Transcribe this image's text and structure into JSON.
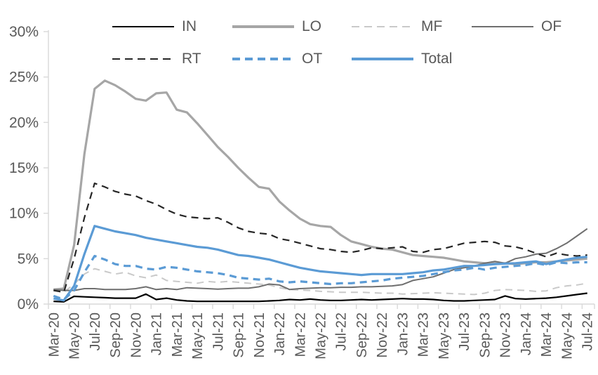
{
  "chart_data": {
    "type": "line",
    "title": "",
    "xlabel": "",
    "ylabel": "",
    "ylim": [
      0,
      30
    ],
    "grid": false,
    "y_tick_labels": [
      "0%",
      "5%",
      "10%",
      "15%",
      "20%",
      "25%",
      "30%"
    ],
    "x_tick_label_step": 2,
    "axis_color": "#d9d9d9",
    "label_color": "#595959",
    "x": [
      "Mar-20",
      "Apr-20",
      "May-20",
      "Jun-20",
      "Jul-20",
      "Aug-20",
      "Sep-20",
      "Oct-20",
      "Nov-20",
      "Dec-20",
      "Jan-21",
      "Feb-21",
      "Mar-21",
      "Apr-21",
      "May-21",
      "Jun-21",
      "Jul-21",
      "Aug-21",
      "Sep-21",
      "Oct-21",
      "Nov-21",
      "Dec-21",
      "Jan-22",
      "Feb-22",
      "Mar-22",
      "Apr-22",
      "May-22",
      "Jun-22",
      "Jul-22",
      "Aug-22",
      "Sep-22",
      "Oct-22",
      "Nov-22",
      "Dec-22",
      "Jan-23",
      "Feb-23",
      "Mar-23",
      "Apr-23",
      "May-23",
      "Jun-23",
      "Jul-23",
      "Aug-23",
      "Sep-23",
      "Oct-23",
      "Nov-23",
      "Dec-23",
      "Jan-24",
      "Feb-24",
      "Mar-24",
      "Apr-24",
      "May-24",
      "Jun-24",
      "Jul-24"
    ],
    "series": [
      {
        "name": "IN",
        "color": "#000000",
        "dash": "solid",
        "width": 2.2,
        "values": [
          0.3,
          0.25,
          0.85,
          0.8,
          0.75,
          0.7,
          0.65,
          0.65,
          0.65,
          1.1,
          0.5,
          0.65,
          0.45,
          0.35,
          0.3,
          0.3,
          0.3,
          0.3,
          0.3,
          0.3,
          0.3,
          0.35,
          0.4,
          0.5,
          0.45,
          0.55,
          0.45,
          0.4,
          0.4,
          0.45,
          0.5,
          0.45,
          0.5,
          0.55,
          0.6,
          0.55,
          0.55,
          0.5,
          0.4,
          0.35,
          0.35,
          0.4,
          0.45,
          0.5,
          0.9,
          0.6,
          0.55,
          0.6,
          0.65,
          0.75,
          0.9,
          1.05,
          1.2
        ]
      },
      {
        "name": "LO",
        "color": "#a6a6a6",
        "dash": "solid",
        "width": 3.2,
        "values": [
          1.6,
          1.7,
          6.5,
          16.5,
          23.7,
          24.6,
          24.1,
          23.4,
          22.6,
          22.4,
          23.2,
          23.3,
          21.4,
          21.1,
          19.9,
          18.6,
          17.3,
          16.2,
          15.0,
          13.9,
          12.9,
          12.7,
          11.3,
          10.3,
          9.4,
          8.8,
          8.6,
          8.5,
          7.6,
          6.9,
          6.6,
          6.3,
          6.1,
          6.0,
          5.7,
          5.4,
          5.3,
          5.2,
          5.1,
          4.9,
          4.7,
          4.6,
          4.5,
          4.5,
          4.5,
          4.4,
          4.5,
          4.6,
          4.6,
          4.7,
          4.8,
          4.9,
          5.0
        ]
      },
      {
        "name": "MF",
        "color": "#c9c9c9",
        "dash": "dashed",
        "width": 2.0,
        "values": [
          1.5,
          1.3,
          2.2,
          3.3,
          3.9,
          3.6,
          3.3,
          3.5,
          3.1,
          2.9,
          3.2,
          2.6,
          2.5,
          2.4,
          2.3,
          2.5,
          2.4,
          2.5,
          2.4,
          2.3,
          2.2,
          2.1,
          1.8,
          1.6,
          1.55,
          1.5,
          1.4,
          1.35,
          1.3,
          1.3,
          1.3,
          1.25,
          1.2,
          1.2,
          1.1,
          1.15,
          1.2,
          1.25,
          1.2,
          1.15,
          1.1,
          1.05,
          1.2,
          1.5,
          1.6,
          1.55,
          1.5,
          1.4,
          1.45,
          1.8,
          2.0,
          2.1,
          2.3
        ]
      },
      {
        "name": "OF",
        "color": "#6f6f6f",
        "dash": "solid",
        "width": 2.0,
        "values": [
          1.6,
          1.5,
          1.5,
          1.7,
          1.7,
          1.6,
          1.6,
          1.6,
          1.7,
          1.9,
          1.6,
          1.7,
          1.6,
          1.8,
          1.75,
          1.7,
          1.65,
          1.7,
          1.75,
          1.75,
          1.9,
          2.2,
          2.1,
          1.6,
          1.7,
          1.75,
          1.8,
          1.8,
          1.85,
          1.85,
          1.9,
          1.9,
          1.95,
          2.0,
          2.15,
          2.6,
          2.8,
          3.0,
          3.4,
          3.8,
          4.0,
          4.2,
          4.5,
          4.7,
          4.5,
          5.0,
          5.2,
          5.5,
          5.6,
          6.1,
          6.7,
          7.5,
          8.3
        ]
      },
      {
        "name": "RT",
        "color": "#262626",
        "dash": "dashed",
        "width": 2.2,
        "values": [
          1.5,
          1.3,
          5.0,
          9.5,
          13.3,
          12.9,
          12.4,
          12.1,
          11.9,
          11.4,
          11.0,
          10.4,
          9.9,
          9.6,
          9.5,
          9.4,
          9.5,
          9.0,
          8.4,
          8.0,
          7.8,
          7.7,
          7.2,
          7.0,
          6.7,
          6.4,
          6.1,
          6.0,
          5.8,
          5.7,
          5.9,
          6.2,
          6.1,
          6.2,
          6.3,
          5.8,
          5.7,
          6.0,
          6.1,
          6.4,
          6.7,
          6.8,
          6.9,
          6.8,
          6.4,
          6.3,
          6.0,
          5.6,
          5.2,
          5.6,
          5.4,
          5.3,
          5.4
        ]
      },
      {
        "name": "OT",
        "color": "#5b9bd5",
        "dash": "dashed",
        "width": 3.2,
        "values": [
          0.9,
          0.5,
          1.5,
          3.5,
          5.3,
          4.9,
          4.4,
          4.2,
          4.2,
          3.9,
          3.8,
          4.1,
          4.0,
          3.8,
          3.6,
          3.5,
          3.4,
          3.2,
          2.9,
          2.8,
          2.7,
          2.8,
          2.5,
          2.4,
          2.5,
          2.4,
          2.3,
          2.2,
          2.3,
          2.3,
          2.4,
          2.5,
          2.6,
          2.8,
          2.9,
          3.0,
          3.1,
          3.3,
          3.5,
          3.7,
          3.8,
          4.0,
          3.8,
          4.0,
          4.1,
          4.2,
          4.3,
          4.5,
          4.3,
          4.6,
          4.5,
          4.6,
          4.6
        ]
      },
      {
        "name": "Total",
        "color": "#5b9bd5",
        "dash": "solid",
        "width": 3.2,
        "values": [
          0.6,
          0.4,
          2.0,
          5.5,
          8.6,
          8.3,
          8.0,
          7.8,
          7.6,
          7.3,
          7.1,
          6.9,
          6.7,
          6.5,
          6.3,
          6.2,
          6.0,
          5.7,
          5.4,
          5.3,
          5.1,
          4.9,
          4.6,
          4.3,
          4.0,
          3.8,
          3.6,
          3.5,
          3.4,
          3.3,
          3.2,
          3.3,
          3.3,
          3.3,
          3.3,
          3.4,
          3.5,
          3.7,
          3.8,
          4.0,
          4.2,
          4.2,
          4.3,
          4.4,
          4.45,
          4.5,
          4.6,
          4.7,
          4.4,
          4.7,
          4.9,
          5.1,
          5.2
        ]
      }
    ],
    "legend": {
      "position": "top",
      "rows": [
        [
          "IN",
          "LO",
          "MF",
          "OF"
        ],
        [
          "RT",
          "OT",
          "Total"
        ]
      ]
    }
  }
}
